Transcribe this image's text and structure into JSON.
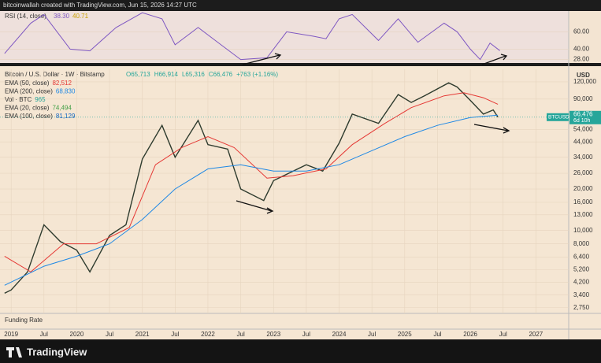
{
  "header": "bitcoinwallah created with TradingView.com, Jun 15, 2026 14:27 UTC",
  "logo": "TradingView",
  "funding_label": "Funding Rate",
  "chart_data": [
    {
      "type": "line",
      "title": "RSI (14, close)",
      "legend_values": [
        "38.30",
        "40.71"
      ],
      "xlim": [
        2018.83,
        2027.5
      ],
      "ylim": [
        24,
        84
      ],
      "yticks": [
        {
          "value": 60,
          "label": "60.00"
        },
        {
          "value": 40,
          "label": "40.00"
        },
        {
          "value": 28,
          "label": "28.00"
        }
      ],
      "grid": true,
      "series": [
        {
          "name": "RSI (14, close)",
          "color": "#7e57c2",
          "x": [
            2018.9,
            2019.3,
            2019.5,
            2019.9,
            2020.2,
            2020.6,
            2021.0,
            2021.3,
            2021.5,
            2021.85,
            2022.2,
            2022.5,
            2022.9,
            2023.2,
            2023.6,
            2023.8,
            2024.0,
            2024.2,
            2024.6,
            2024.9,
            2025.2,
            2025.6,
            2025.8,
            2026.0,
            2026.15,
            2026.3,
            2026.45
          ],
          "values": [
            35,
            70,
            80,
            40,
            38,
            65,
            82,
            75,
            45,
            65,
            45,
            28,
            30,
            60,
            55,
            52,
            75,
            80,
            50,
            75,
            48,
            70,
            60,
            40,
            28,
            47,
            38.3
          ]
        }
      ]
    },
    {
      "type": "line",
      "title": "Bitcoin / U.S. Dollar · 1W · Bitstamp",
      "ohlc": [
        "O65,713",
        "H66,914",
        "L65,316",
        "C66,476",
        "+763 (+1.16%)"
      ],
      "indicators": [
        {
          "name": "EMA (50, close)",
          "value": "82,512",
          "color": "#e53935"
        },
        {
          "name": "EMA (200, close)",
          "value": "68,830",
          "color": "#1e88e5"
        },
        {
          "name": "Vol · BTC",
          "value": "965",
          "color": "#26a69a"
        },
        {
          "name": "EMA (20, close)",
          "value": "74,494",
          "color": "#43a047"
        },
        {
          "name": "EMA (100, close)",
          "value": "81,129",
          "color": "#1565c0"
        }
      ],
      "currency": "USD",
      "symbol": "BTCUSD",
      "last_price": "66,476",
      "countdown": "6d 10h",
      "log_scale": true,
      "grid": true,
      "xlim": [
        2018.83,
        2027.5
      ],
      "ylim": [
        2500,
        148000
      ],
      "yticks": [
        {
          "value": 120000,
          "label": "120,000"
        },
        {
          "value": 90000,
          "label": "90,000"
        },
        {
          "value": 54000,
          "label": "54,000"
        },
        {
          "value": 44000,
          "label": "44,000"
        },
        {
          "value": 34000,
          "label": "34,000"
        },
        {
          "value": 26000,
          "label": "26,000"
        },
        {
          "value": 20000,
          "label": "20,000"
        },
        {
          "value": 16000,
          "label": "16,000"
        },
        {
          "value": 13000,
          "label": "13,000"
        },
        {
          "value": 10000,
          "label": "10,000"
        },
        {
          "value": 8000,
          "label": "8,000"
        },
        {
          "value": 6400,
          "label": "6,400"
        },
        {
          "value": 5200,
          "label": "5,200"
        },
        {
          "value": 4200,
          "label": "4,200"
        },
        {
          "value": 3400,
          "label": "3,400"
        },
        {
          "value": 2750,
          "label": "2,750"
        }
      ],
      "xticks": [
        2019,
        {
          "value": 2019.5,
          "label": "Jul"
        },
        2020,
        {
          "value": 2020.5,
          "label": "Jul"
        },
        2021,
        {
          "value": 2021.5,
          "label": "Jul"
        },
        2022,
        {
          "value": 2022.5,
          "label": "Jul"
        },
        2023,
        {
          "value": 2023.5,
          "label": "Jul"
        },
        2024,
        {
          "value": 2024.5,
          "label": "Jul"
        },
        2025,
        {
          "value": 2025.5,
          "label": "Jul"
        },
        2026,
        {
          "value": 2026.5,
          "label": "Jul"
        },
        2027
      ],
      "series": [
        {
          "name": "BTCUSD",
          "color": "#2e3b2e",
          "x": [
            2018.9,
            2019.0,
            2019.25,
            2019.5,
            2019.75,
            2020.0,
            2020.2,
            2020.5,
            2020.75,
            2021.0,
            2021.3,
            2021.5,
            2021.85,
            2022.0,
            2022.3,
            2022.5,
            2022.85,
            2023.0,
            2023.5,
            2023.75,
            2024.0,
            2024.2,
            2024.6,
            2024.9,
            2025.1,
            2025.3,
            2025.67,
            2025.8,
            2026.0,
            2026.2,
            2026.35,
            2026.42
          ],
          "values": [
            3500,
            3700,
            5000,
            11000,
            8300,
            7200,
            5000,
            9200,
            11000,
            33000,
            58000,
            34000,
            63000,
            42000,
            39000,
            20000,
            16500,
            23000,
            30000,
            27000,
            43000,
            70000,
            60000,
            97000,
            85000,
            95000,
            118000,
            110000,
            88000,
            70000,
            75000,
            66476
          ]
        },
        {
          "name": "EMA (50, close)",
          "color": "#e53935",
          "x": [
            2018.9,
            2019.3,
            2019.8,
            2020.3,
            2020.8,
            2021.2,
            2021.6,
            2022.0,
            2022.4,
            2022.9,
            2023.3,
            2023.8,
            2024.2,
            2024.7,
            2025.1,
            2025.6,
            2025.9,
            2026.2,
            2026.42
          ],
          "values": [
            6500,
            5000,
            8000,
            8000,
            10500,
            30000,
            40000,
            48000,
            40000,
            24000,
            25000,
            28000,
            42000,
            60000,
            78000,
            95000,
            100000,
            92000,
            82512
          ]
        },
        {
          "name": "EMA (200, close)",
          "color": "#1e88e5",
          "x": [
            2018.9,
            2019.5,
            2020.0,
            2020.5,
            2021.0,
            2021.5,
            2022.0,
            2022.5,
            2023.0,
            2023.5,
            2024.0,
            2024.5,
            2025.0,
            2025.5,
            2026.0,
            2026.42
          ],
          "values": [
            4000,
            5500,
            6500,
            8000,
            12000,
            20000,
            28000,
            30000,
            27000,
            27000,
            30000,
            38000,
            48000,
            58000,
            66000,
            68830
          ]
        }
      ]
    }
  ]
}
